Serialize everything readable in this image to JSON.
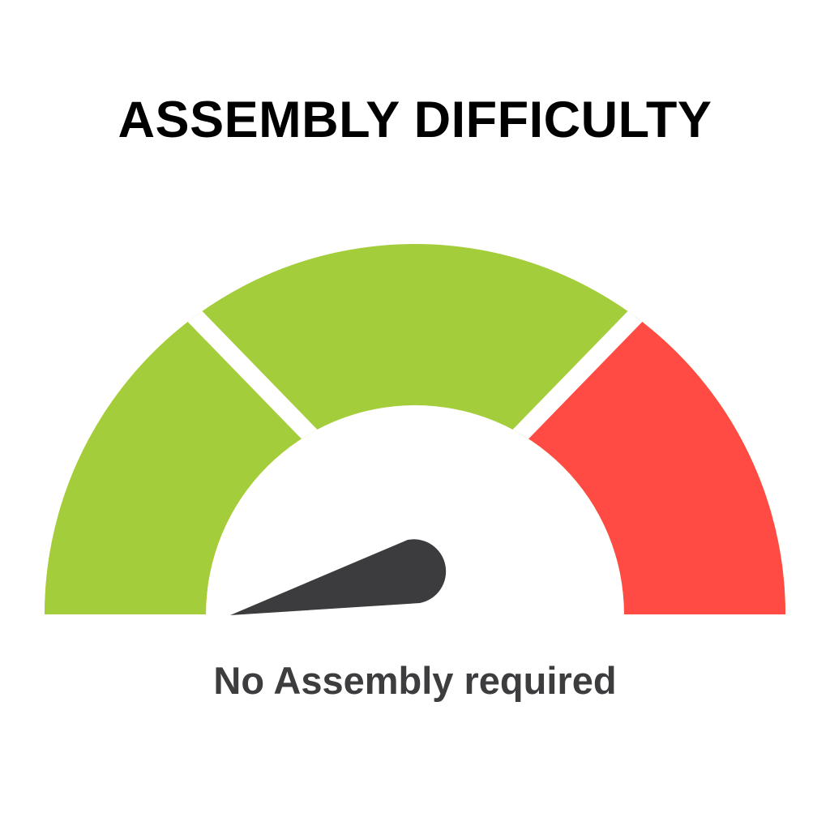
{
  "title": "ASSEMBLY DIFFICULTY",
  "caption": "No Assembly required",
  "gauge": {
    "segments": [
      {
        "color": "#FCC81A"
      },
      {
        "color": "#A3CD3B"
      },
      {
        "color": "#FF4B44"
      }
    ],
    "needle_color": "#3C3C3E",
    "needle_level_percent": 2
  }
}
